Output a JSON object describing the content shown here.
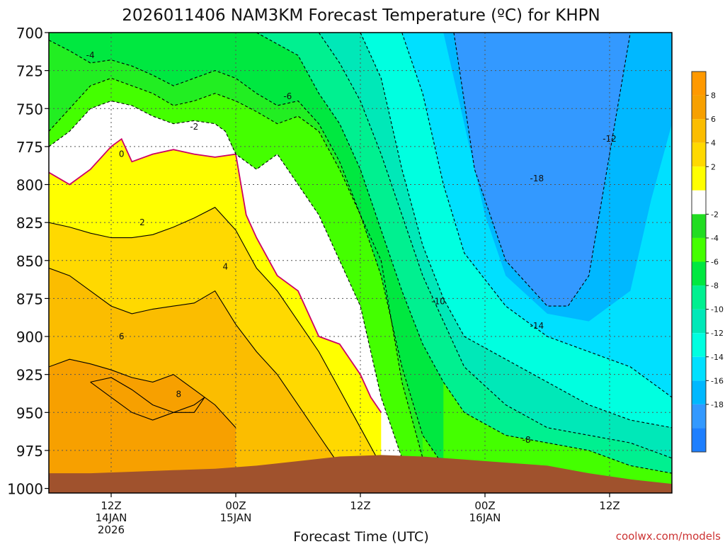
{
  "chart_data": {
    "type": "heatmap",
    "title": "2026011406 NAM3KM Forecast Temperature (ºC) for KHPN",
    "xlabel": "Forecast Time (UTC)",
    "ylabel": "",
    "credit": "coolwx.com/models",
    "y_axis": {
      "ticks": [
        700,
        725,
        750,
        775,
        800,
        825,
        850,
        875,
        900,
        925,
        950,
        975,
        1000
      ],
      "range": [
        700,
        1003
      ],
      "inverted": true
    },
    "x_axis": {
      "range_hours": [
        0,
        60
      ],
      "ticks": [
        {
          "hour": 6,
          "label": "12Z",
          "sub1": "14JAN",
          "sub2": "2026"
        },
        {
          "hour": 18,
          "label": "00Z",
          "sub1": "15JAN",
          "sub2": ""
        },
        {
          "hour": 30,
          "label": "12Z",
          "sub1": "",
          "sub2": ""
        },
        {
          "hour": 42,
          "label": "00Z",
          "sub1": "16JAN",
          "sub2": ""
        },
        {
          "hour": 54,
          "label": "12Z",
          "sub1": "",
          "sub2": ""
        }
      ]
    },
    "grid": true,
    "colorbar": {
      "position": "right",
      "levels": [
        {
          "label": "8",
          "color": "#f7a000"
        },
        {
          "label": "6",
          "color": "#fbbd00"
        },
        {
          "label": "4",
          "color": "#ffd900"
        },
        {
          "label": "2",
          "color": "#ffff00"
        },
        {
          "label": "",
          "color": "#ffffff"
        },
        {
          "label": "-2",
          "color": "#22dd22"
        },
        {
          "label": "-4",
          "color": "#44ff00"
        },
        {
          "label": "-6",
          "color": "#00e840"
        },
        {
          "label": "-8",
          "color": "#00f090"
        },
        {
          "label": "-10",
          "color": "#00e8b8"
        },
        {
          "label": "-12",
          "color": "#00ffe0"
        },
        {
          "label": "-14",
          "color": "#00e0ff"
        },
        {
          "label": "-16",
          "color": "#00b8ff"
        },
        {
          "label": "-18",
          "color": "#3399ff"
        },
        {
          "label": "",
          "color": "#1e7fff"
        }
      ],
      "top_color": "#ff9900"
    },
    "bands": [
      {
        "color": "#ffd900",
        "hours": [
          0,
          2,
          4,
          6,
          8,
          10,
          12,
          14,
          16,
          18,
          20,
          22,
          24,
          26,
          28,
          30,
          32
        ],
        "pressures": [
          825,
          828,
          832,
          835,
          835,
          833,
          828,
          822,
          815,
          830,
          855,
          870,
          890,
          910,
          935,
          960,
          985
        ]
      },
      {
        "color": "#fbbd00",
        "hours": [
          0,
          2,
          4,
          6,
          8,
          10,
          12,
          14,
          16,
          18,
          20,
          22,
          24,
          26,
          28
        ],
        "pressures": [
          855,
          860,
          870,
          880,
          885,
          882,
          880,
          878,
          870,
          892,
          910,
          925,
          945,
          965,
          985
        ]
      },
      {
        "color": "#f7a000",
        "hours": [
          0,
          2,
          4,
          6,
          8,
          10,
          12,
          14,
          16,
          18
        ],
        "pressures": [
          920,
          915,
          918,
          922,
          927,
          930,
          925,
          935,
          945,
          960
        ]
      },
      {
        "color": "#00f090",
        "hours": [
          20,
          24,
          26,
          28,
          30,
          32,
          34,
          36,
          38,
          40,
          44,
          48,
          52,
          56,
          60
        ],
        "pressures": [
          700,
          715,
          740,
          760,
          790,
          830,
          870,
          905,
          930,
          950,
          965,
          970,
          975,
          985,
          990
        ]
      },
      {
        "color": "#00e8b8",
        "hours": [
          26,
          28,
          30,
          32,
          34,
          36,
          38,
          40,
          44,
          48,
          52,
          56,
          60
        ],
        "pressures": [
          700,
          720,
          745,
          780,
          820,
          860,
          890,
          920,
          945,
          960,
          965,
          970,
          980
        ]
      },
      {
        "color": "#00ffe0",
        "hours": [
          30,
          32,
          34,
          36,
          38,
          40,
          44,
          48,
          52,
          56,
          60
        ],
        "pressures": [
          700,
          730,
          790,
          840,
          875,
          900,
          915,
          930,
          945,
          955,
          960
        ]
      },
      {
        "color": "#00e0ff",
        "hours": [
          34,
          36,
          38,
          40,
          44,
          48,
          52,
          56,
          58,
          60
        ],
        "pressures": [
          700,
          740,
          800,
          845,
          880,
          900,
          910,
          920,
          930,
          940
        ]
      },
      {
        "color": "#00b8ff",
        "hours": [
          38,
          40,
          42,
          44,
          48,
          52,
          56,
          58,
          60
        ],
        "pressures": [
          700,
          760,
          820,
          860,
          885,
          890,
          870,
          810,
          760
        ]
      },
      {
        "color": "#3399ff",
        "hours": [
          39,
          41,
          44,
          48,
          50,
          52,
          54,
          56
        ],
        "pressures": [
          700,
          790,
          850,
          880,
          880,
          860,
          780,
          700
        ]
      }
    ],
    "isotherms": [
      {
        "value": 0,
        "label": "0",
        "label_hour": 7,
        "label_pressure": 780,
        "color": "#cc0066",
        "dashed": false,
        "hours": [
          0,
          2,
          4,
          6,
          7,
          8,
          10,
          12,
          14,
          16,
          18,
          19,
          20,
          22,
          24,
          26,
          28,
          30,
          31,
          32
        ],
        "pressures": [
          792,
          800,
          790,
          775,
          770,
          785,
          780,
          777,
          780,
          782,
          780,
          820,
          835,
          860,
          870,
          900,
          905,
          925,
          940,
          950
        ]
      },
      {
        "value": 2,
        "label": "2",
        "label_hour": 9,
        "label_pressure": 825,
        "color": "#000000",
        "dashed": false,
        "hours": [
          0,
          2,
          4,
          6,
          8,
          10,
          12,
          14,
          16,
          18,
          20,
          22,
          24,
          26,
          28,
          30,
          32
        ],
        "pressures": [
          825,
          828,
          832,
          835,
          835,
          833,
          828,
          822,
          815,
          830,
          855,
          870,
          890,
          910,
          935,
          960,
          985
        ]
      },
      {
        "value": 4,
        "label": "4",
        "label_hour": 17,
        "label_pressure": 854,
        "color": "#000000",
        "dashed": false,
        "hours": [
          0,
          2,
          4,
          6,
          8,
          10,
          12,
          14,
          16,
          18,
          20,
          22,
          24,
          26,
          28
        ],
        "pressures": [
          855,
          860,
          870,
          880,
          885,
          882,
          880,
          878,
          870,
          892,
          910,
          925,
          945,
          965,
          985
        ]
      },
      {
        "value": 6,
        "label": "6",
        "label_hour": 7,
        "label_pressure": 900,
        "color": "#000000",
        "dashed": false,
        "hours": [
          0,
          2,
          4,
          6,
          8,
          10,
          12,
          14,
          16,
          18
        ],
        "pressures": [
          920,
          915,
          918,
          922,
          927,
          930,
          925,
          935,
          945,
          960
        ]
      },
      {
        "value": 8,
        "label": "8",
        "label_hour": 12.5,
        "label_pressure": 938,
        "color": "#000000",
        "dashed": false,
        "hours": [
          4,
          6,
          8,
          10,
          12,
          14,
          15,
          14,
          12,
          10,
          8,
          6,
          4
        ],
        "pressures": [
          930,
          927,
          935,
          945,
          950,
          945,
          940,
          950,
          950,
          955,
          950,
          940,
          930
        ]
      },
      {
        "value": -2,
        "label": "-2",
        "label_hour": 14,
        "label_pressure": 762,
        "color": "#000000",
        "dashed": true,
        "hours": [
          0,
          2,
          4,
          6,
          8,
          10,
          12,
          14,
          16,
          17,
          18,
          20,
          22,
          24,
          26,
          28,
          30,
          32,
          34
        ],
        "pressures": [
          775,
          765,
          750,
          745,
          748,
          755,
          760,
          758,
          760,
          765,
          780,
          790,
          780,
          800,
          820,
          850,
          880,
          940,
          980
        ]
      },
      {
        "value": -4,
        "label": "-4",
        "label_hour": 4,
        "label_pressure": 715,
        "color": "#000000",
        "dashed": true,
        "hours": [
          0,
          2,
          4,
          6,
          8,
          10,
          12,
          14,
          16,
          18,
          20,
          22,
          24,
          26,
          28,
          30,
          32,
          34,
          36
        ],
        "pressures": [
          765,
          750,
          735,
          730,
          735,
          740,
          748,
          745,
          740,
          745,
          752,
          760,
          755,
          765,
          790,
          820,
          850,
          930,
          980
        ]
      },
      {
        "value": -6,
        "label": "-6",
        "label_hour": 23,
        "label_pressure": 742,
        "color": "#000000",
        "dashed": true,
        "hours": [
          0,
          2,
          4,
          6,
          8,
          10,
          12,
          14,
          16,
          18,
          20,
          22,
          24,
          26,
          28,
          30,
          32,
          34,
          36,
          38
        ],
        "pressures": [
          705,
          712,
          720,
          718,
          722,
          728,
          735,
          730,
          725,
          730,
          740,
          748,
          745,
          760,
          785,
          820,
          860,
          920,
          965,
          985
        ]
      },
      {
        "value": -8,
        "label": "-8",
        "label_hour": 46,
        "label_pressure": 968,
        "color": "#000000",
        "dashed": true,
        "hours": [
          20,
          24,
          26,
          28,
          30,
          32,
          34,
          36,
          38,
          40,
          44,
          48,
          52,
          56,
          60
        ],
        "pressures": [
          700,
          715,
          740,
          760,
          790,
          830,
          870,
          905,
          930,
          950,
          965,
          970,
          975,
          985,
          990
        ]
      },
      {
        "value": -10,
        "label": "-10",
        "label_hour": 37.5,
        "label_pressure": 877,
        "color": "#000000",
        "dashed": true,
        "hours": [
          26,
          28,
          30,
          32,
          34,
          36,
          38,
          40,
          44,
          48,
          52,
          56,
          60
        ],
        "pressures": [
          700,
          720,
          745,
          780,
          820,
          860,
          890,
          920,
          945,
          960,
          965,
          970,
          980
        ]
      },
      {
        "value": -12,
        "label": "-12",
        "label_hour": 54,
        "label_pressure": 770,
        "color": "#000000",
        "dashed": true,
        "hours": [
          30,
          32,
          34,
          36,
          38,
          40,
          44,
          48,
          52,
          56,
          60
        ],
        "pressures": [
          700,
          730,
          790,
          840,
          875,
          900,
          915,
          930,
          945,
          955,
          960
        ]
      },
      {
        "value": -14,
        "label": "-14",
        "label_hour": 47,
        "label_pressure": 893,
        "color": "#000000",
        "dashed": true,
        "hours": [
          34,
          36,
          38,
          40,
          44,
          48,
          52,
          56,
          58,
          60
        ],
        "pressures": [
          700,
          740,
          800,
          845,
          880,
          900,
          910,
          920,
          930,
          940
        ]
      },
      {
        "value": -18,
        "label": "-18",
        "label_hour": 47,
        "label_pressure": 796,
        "color": "#000000",
        "dashed": true,
        "hours": [
          39,
          41,
          44,
          48,
          50,
          52,
          54,
          56
        ],
        "pressures": [
          700,
          790,
          850,
          880,
          880,
          860,
          780,
          700
        ]
      }
    ],
    "terrain": {
      "color": "#a0522d",
      "hours": [
        0,
        4,
        8,
        12,
        16,
        20,
        24,
        28,
        32,
        36,
        40,
        44,
        48,
        52,
        56,
        60
      ],
      "pressures": [
        990,
        990,
        989,
        988,
        987,
        985,
        982,
        979,
        978,
        979,
        981,
        983,
        985,
        990,
        994,
        997
      ]
    }
  }
}
